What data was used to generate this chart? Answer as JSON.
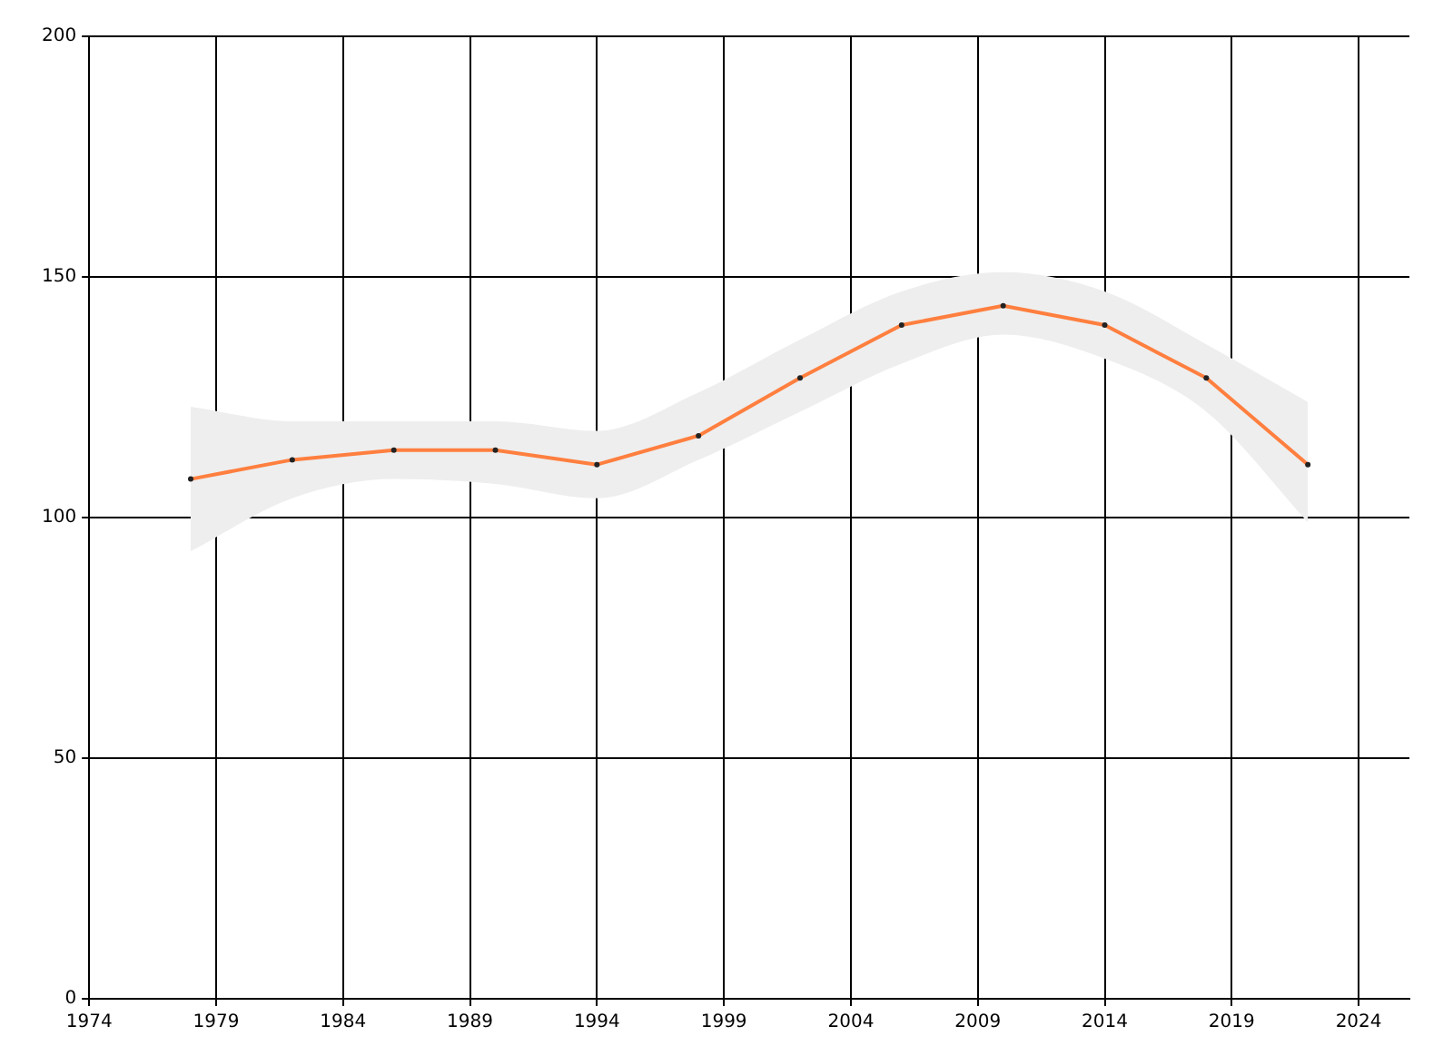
{
  "chart_data": {
    "type": "line",
    "x": [
      1978,
      1982,
      1986,
      1990,
      1994,
      1998,
      2002,
      2006,
      2010,
      2014,
      2018,
      2022
    ],
    "series": [
      {
        "color": "#ff7f3f",
        "values": [
          108,
          112,
          114,
          114,
          111,
          117,
          129,
          140,
          144,
          140,
          129,
          111
        ],
        "lower": [
          93,
          104,
          108,
          107,
          104,
          112,
          122,
          132,
          138,
          133,
          122,
          99
        ],
        "upper": [
          123,
          120,
          120,
          120,
          118,
          126,
          137,
          147,
          151,
          147,
          136,
          124
        ]
      }
    ],
    "xlim": [
      1974,
      2026
    ],
    "xticks": [
      1974,
      1979,
      1984,
      1989,
      1994,
      1999,
      2004,
      2009,
      2014,
      2019,
      2024
    ],
    "ylim": [
      0,
      200
    ],
    "yticks": [
      0,
      50,
      100,
      150,
      200
    ],
    "grid": true,
    "marker": "circle",
    "line_style": "solid",
    "legend": false
  }
}
